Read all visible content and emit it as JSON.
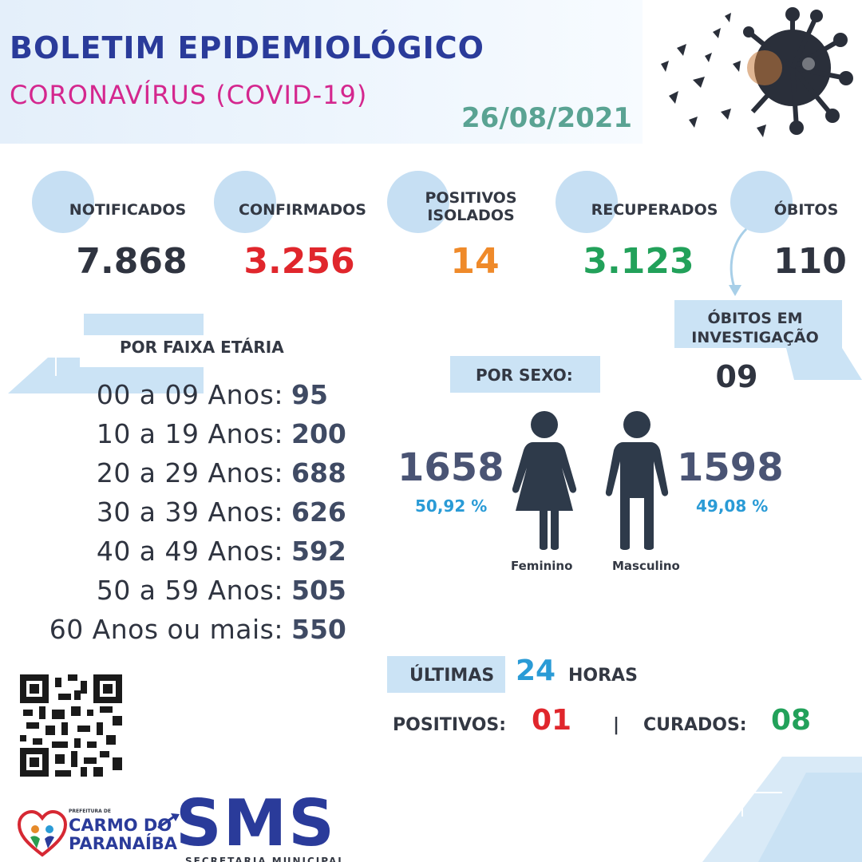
{
  "header": {
    "title": "BOLETIM EPIDEMIOLÓGICO",
    "subtitle": "CORONAVÍRUS (COVID-19)",
    "date": "26/08/2021"
  },
  "stats": [
    {
      "label": "NOTIFICADOS",
      "value": "7.868",
      "color": "#2f3440"
    },
    {
      "label": "CONFIRMADOS",
      "value": "3.256",
      "color": "#e0262c"
    },
    {
      "label_line1": "POSITIVOS",
      "label_line2": "ISOLADOS",
      "value": "14",
      "color": "#ef8a2a"
    },
    {
      "label": "RECUPERADOS",
      "value": "3.123",
      "color": "#22a15a"
    },
    {
      "label": "ÓBITOS",
      "value": "110",
      "color": "#2f3440"
    }
  ],
  "investigation": {
    "label_line1": "ÓBITOS EM",
    "label_line2": "INVESTIGAÇÃO",
    "value": "09"
  },
  "age": {
    "title": "POR FAIXA ETÁRIA",
    "rows": [
      {
        "label": "00 a 09 Anos:",
        "value": "95"
      },
      {
        "label": "10 a 19 Anos:",
        "value": "200"
      },
      {
        "label": "20 a 29 Anos:",
        "value": "688"
      },
      {
        "label": "30 a 39 Anos:",
        "value": "626"
      },
      {
        "label": "40 a 49 Anos:",
        "value": "592"
      },
      {
        "label": "50 a 59 Anos:",
        "value": "505"
      },
      {
        "label": "60 Anos ou mais:",
        "value": "550"
      }
    ]
  },
  "sex": {
    "title": "POR SEXO:",
    "female": {
      "count": "1658",
      "percent": "50,92 %",
      "caption": "Feminino"
    },
    "male": {
      "count": "1598",
      "percent": "49,08 %",
      "caption": "Masculino"
    }
  },
  "last24": {
    "prefix": "ÚLTIMAS",
    "number": "24",
    "suffix": "HORAS",
    "positives_label": "POSITIVOS:",
    "positives_value": "01",
    "separator": "|",
    "cured_label": "CURADOS:",
    "cured_value": "08"
  },
  "footer": {
    "prefeitura": "PREFEITURA DE",
    "city_line1": "CARMO DO",
    "city_line2": "PARANAÍBA",
    "sms": "SMS",
    "sms_sub": "SECRETARIA MUNICIPAL"
  },
  "colors": {
    "title": "#2a3b9a",
    "subtitle": "#d4278e",
    "date": "#5aa393",
    "bubble": "#c6dff3",
    "panel": "#cbe3f5",
    "positives": "#e0262c",
    "cured": "#22a15a",
    "highlight": "#2a9bd6"
  },
  "icons": [
    "coronavirus-art-icon",
    "female-figure-icon",
    "male-figure-icon",
    "qr-code-icon",
    "heart-logo-icon",
    "arrow-icon"
  ]
}
